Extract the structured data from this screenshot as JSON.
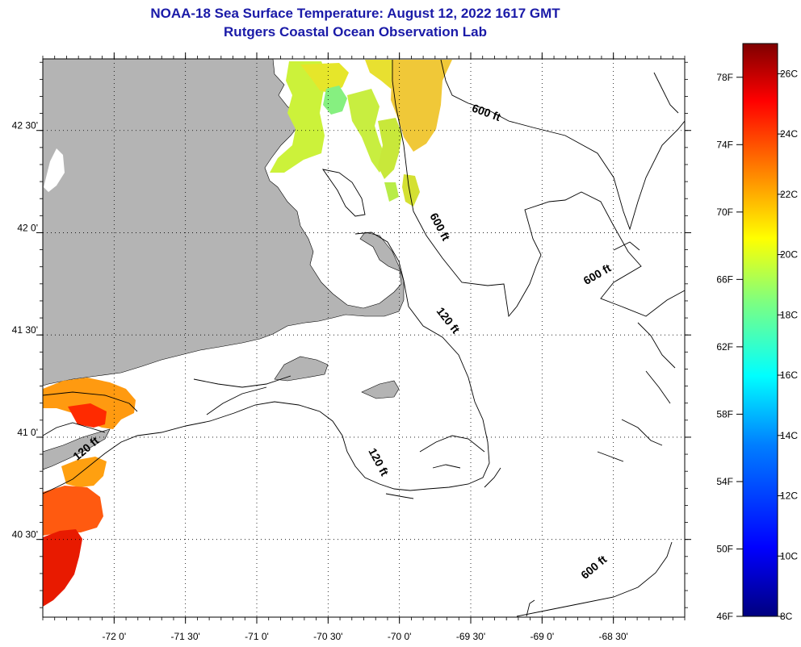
{
  "header": {
    "title": "NOAA-18 Sea Surface Temperature:  August 12, 2022 1617 GMT",
    "subtitle": "Rutgers Coastal Ocean Observation Lab"
  },
  "map": {
    "lon_range": [
      -72.5,
      -68.0
    ],
    "lat_range": [
      40.12,
      42.85
    ],
    "x_ticks": [
      {
        "value": -72.0,
        "label": "-72 0'"
      },
      {
        "value": -71.5,
        "label": "-71 30'"
      },
      {
        "value": -71.0,
        "label": "-71 0'"
      },
      {
        "value": -70.5,
        "label": "-70 30'"
      },
      {
        "value": -70.0,
        "label": "-70 0'"
      },
      {
        "value": -69.5,
        "label": "-69 30'"
      },
      {
        "value": -69.0,
        "label": "-69 0'"
      },
      {
        "value": -68.5,
        "label": "-68 30'"
      }
    ],
    "y_ticks": [
      {
        "value": 42.5,
        "label": "42 30'"
      },
      {
        "value": 42.0,
        "label": "42 0'"
      },
      {
        "value": 41.5,
        "label": "41 30'"
      },
      {
        "value": 41.0,
        "label": "41 0'"
      },
      {
        "value": 40.5,
        "label": "40 30'"
      }
    ],
    "grid": "dotted",
    "land_color": "#b4b4b4",
    "contour_labels": [
      {
        "text": "600 ft",
        "lon": -69.4,
        "lat": 42.57
      },
      {
        "text": "600 ft",
        "lon": -69.74,
        "lat": 42.02
      },
      {
        "text": "600 ft",
        "lon": -68.6,
        "lat": 41.78
      },
      {
        "text": "120 ft",
        "lon": -69.68,
        "lat": 41.56
      },
      {
        "text": "120 ft",
        "lon": -70.17,
        "lat": 40.87
      },
      {
        "text": "120 ft",
        "lon": -72.18,
        "lat": 40.93
      },
      {
        "text": "600 ft",
        "lon": -68.62,
        "lat": 40.35
      }
    ]
  },
  "colorbar": {
    "f_labels": [
      "78F",
      "74F",
      "70F",
      "66F",
      "62F",
      "58F",
      "54F",
      "50F",
      "46F"
    ],
    "c_labels": [
      "26C",
      "24C",
      "22C",
      "20C",
      "18C",
      "16C",
      "14C",
      "12C",
      "10C",
      "8C"
    ],
    "f_range": [
      46,
      80
    ],
    "c_range": [
      8,
      27
    ],
    "colors": [
      "#00007f",
      "#0000ff",
      "#007fff",
      "#00ffff",
      "#7fff7f",
      "#ffff00",
      "#ff7f00",
      "#ff0000",
      "#7f0000"
    ]
  }
}
